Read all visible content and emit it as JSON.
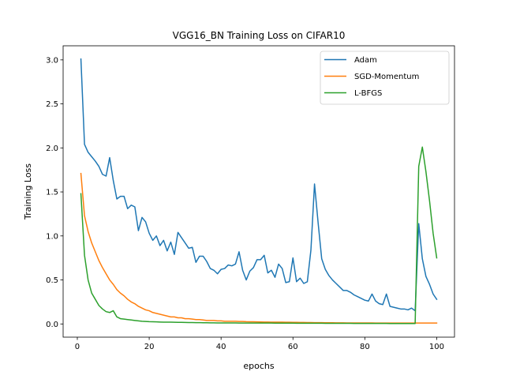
{
  "chart_data": {
    "type": "line",
    "title": "VGG16_BN Training Loss on CIFAR10",
    "xlabel": "epochs",
    "ylabel": "Training Loss",
    "xlim": [
      -3.95,
      104.95
    ],
    "ylim": [
      -0.15,
      3.16
    ],
    "xticks": [
      0,
      20,
      40,
      60,
      80,
      100
    ],
    "yticks": [
      0.0,
      0.5,
      1.0,
      1.5,
      2.0,
      2.5,
      3.0
    ],
    "legend_position": "top-right",
    "grid": false,
    "x": [
      1,
      2,
      3,
      4,
      5,
      6,
      7,
      8,
      9,
      10,
      11,
      12,
      13,
      14,
      15,
      16,
      17,
      18,
      19,
      20,
      21,
      22,
      23,
      24,
      25,
      26,
      27,
      28,
      29,
      30,
      31,
      32,
      33,
      34,
      35,
      36,
      37,
      38,
      39,
      40,
      41,
      42,
      43,
      44,
      45,
      46,
      47,
      48,
      49,
      50,
      51,
      52,
      53,
      54,
      55,
      56,
      57,
      58,
      59,
      60,
      61,
      62,
      63,
      64,
      65,
      66,
      67,
      68,
      69,
      70,
      71,
      72,
      73,
      74,
      75,
      76,
      77,
      78,
      79,
      80,
      81,
      82,
      83,
      84,
      85,
      86,
      87,
      88,
      89,
      90,
      91,
      92,
      93,
      94,
      95,
      96,
      97,
      98,
      99,
      100
    ],
    "series": [
      {
        "name": "Adam",
        "color": "#1f77b4",
        "values": [
          3.01,
          2.04,
          1.95,
          1.9,
          1.85,
          1.79,
          1.7,
          1.68,
          1.89,
          1.63,
          1.42,
          1.45,
          1.45,
          1.31,
          1.35,
          1.33,
          1.06,
          1.21,
          1.16,
          1.03,
          0.95,
          1.0,
          0.89,
          0.95,
          0.83,
          0.93,
          0.79,
          1.04,
          0.98,
          0.92,
          0.86,
          0.87,
          0.7,
          0.77,
          0.77,
          0.71,
          0.63,
          0.61,
          0.57,
          0.62,
          0.63,
          0.67,
          0.66,
          0.68,
          0.82,
          0.61,
          0.5,
          0.6,
          0.64,
          0.73,
          0.73,
          0.78,
          0.58,
          0.61,
          0.53,
          0.68,
          0.63,
          0.47,
          0.48,
          0.75,
          0.48,
          0.52,
          0.46,
          0.48,
          0.84,
          1.59,
          1.15,
          0.74,
          0.62,
          0.55,
          0.5,
          0.46,
          0.42,
          0.38,
          0.38,
          0.36,
          0.33,
          0.31,
          0.29,
          0.27,
          0.26,
          0.34,
          0.26,
          0.23,
          0.22,
          0.34,
          0.2,
          0.19,
          0.18,
          0.17,
          0.17,
          0.16,
          0.18,
          0.15,
          1.14,
          0.74,
          0.54,
          0.45,
          0.34,
          0.28
        ]
      },
      {
        "name": "SGD-Momentum",
        "color": "#ff7f0e",
        "values": [
          1.71,
          1.23,
          1.05,
          0.92,
          0.82,
          0.72,
          0.64,
          0.57,
          0.5,
          0.45,
          0.39,
          0.35,
          0.32,
          0.28,
          0.25,
          0.23,
          0.2,
          0.18,
          0.16,
          0.15,
          0.13,
          0.12,
          0.11,
          0.1,
          0.09,
          0.08,
          0.08,
          0.07,
          0.07,
          0.06,
          0.06,
          0.055,
          0.05,
          0.05,
          0.045,
          0.04,
          0.04,
          0.04,
          0.035,
          0.035,
          0.03,
          0.03,
          0.03,
          0.03,
          0.028,
          0.028,
          0.026,
          0.025,
          0.025,
          0.024,
          0.023,
          0.022,
          0.022,
          0.021,
          0.02,
          0.02,
          0.02,
          0.019,
          0.019,
          0.018,
          0.018,
          0.017,
          0.017,
          0.016,
          0.016,
          0.015,
          0.015,
          0.015,
          0.014,
          0.014,
          0.014,
          0.013,
          0.013,
          0.013,
          0.012,
          0.012,
          0.012,
          0.012,
          0.011,
          0.011,
          0.011,
          0.011,
          0.01,
          0.01,
          0.01,
          0.01,
          0.01,
          0.01,
          0.01,
          0.01,
          0.01,
          0.01,
          0.01,
          0.01,
          0.01,
          0.01,
          0.01,
          0.01,
          0.01,
          0.01
        ]
      },
      {
        "name": "L-BFGS",
        "color": "#2ca02c",
        "values": [
          1.48,
          0.78,
          0.5,
          0.35,
          0.28,
          0.21,
          0.17,
          0.14,
          0.13,
          0.15,
          0.08,
          0.06,
          0.055,
          0.05,
          0.045,
          0.04,
          0.035,
          0.03,
          0.028,
          0.026,
          0.025,
          0.024,
          0.022,
          0.02,
          0.02,
          0.02,
          0.019,
          0.018,
          0.018,
          0.017,
          0.016,
          0.016,
          0.015,
          0.015,
          0.014,
          0.014,
          0.013,
          0.013,
          0.012,
          0.012,
          0.012,
          0.011,
          0.011,
          0.011,
          0.01,
          0.01,
          0.01,
          0.01,
          0.01,
          0.01,
          0.01,
          0.01,
          0.01,
          0.01,
          0.009,
          0.009,
          0.009,
          0.009,
          0.009,
          0.009,
          0.008,
          0.008,
          0.008,
          0.008,
          0.008,
          0.008,
          0.008,
          0.008,
          0.007,
          0.007,
          0.007,
          0.007,
          0.007,
          0.007,
          0.007,
          0.007,
          0.006,
          0.006,
          0.006,
          0.006,
          0.006,
          0.006,
          0.006,
          0.006,
          0.006,
          0.006,
          0.005,
          0.005,
          0.005,
          0.005,
          0.005,
          0.005,
          0.005,
          0.005,
          1.79,
          2.01,
          1.73,
          1.4,
          1.03,
          0.75
        ]
      }
    ]
  }
}
